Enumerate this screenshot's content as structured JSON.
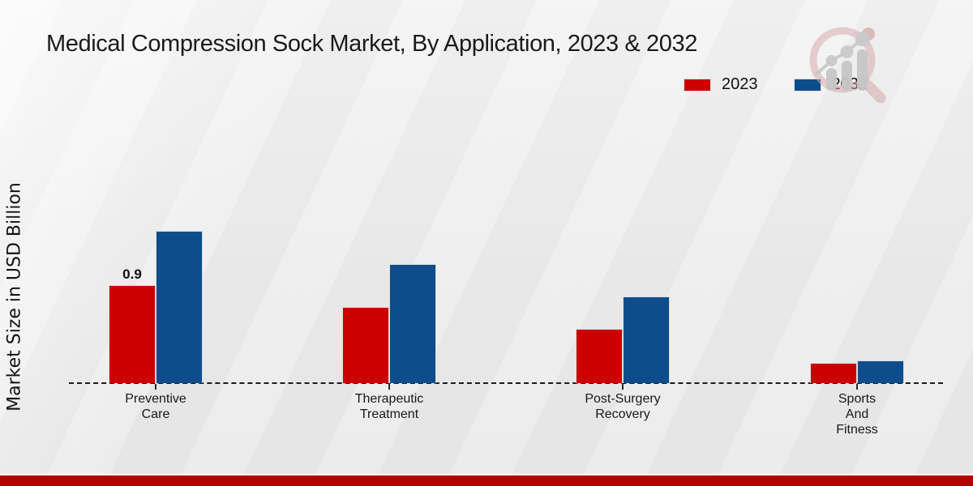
{
  "header": {
    "title": "Medical Compression Sock Market, By Application, 2023 & 2032"
  },
  "legend": {
    "items": [
      {
        "label": "2023",
        "color": "#cc0000"
      },
      {
        "label": "2032",
        "color": "#0d4d8c"
      }
    ]
  },
  "y_axis": {
    "label": "Market Size in USD Billion"
  },
  "icons": {
    "watermark": "magnifier-bar-chart-logo"
  },
  "colors": {
    "bar_2023": "#cc0000",
    "bar_2032": "#0d4d8c",
    "footer_bar": "#b30400",
    "axis_line": "#1c1c1c",
    "background": "#ececec"
  },
  "chart_data": {
    "type": "bar",
    "title": "Medical Compression Sock Market, By Application, 2023 & 2032",
    "xlabel": "",
    "ylabel": "Market Size in USD Billion",
    "categories": [
      "Preventive\nCare",
      "Therapeutic\nTreatment",
      "Post-Surgery\nRecovery",
      "Sports\nAnd\nFitness"
    ],
    "series": [
      {
        "name": "2023",
        "color": "#cc0000",
        "values": [
          0.9,
          0.7,
          0.5,
          0.19
        ],
        "value_labels": [
          "0.9",
          "",
          "",
          ""
        ]
      },
      {
        "name": "2032",
        "color": "#0d4d8c",
        "values": [
          1.4,
          1.1,
          0.8,
          0.21
        ],
        "value_labels": [
          "",
          "",
          "",
          ""
        ]
      }
    ],
    "ylim": [
      0,
      1.5
    ],
    "grid": false,
    "y_ticks_visible": false,
    "legend_position": "top-right",
    "baseline_style": "dashed"
  }
}
